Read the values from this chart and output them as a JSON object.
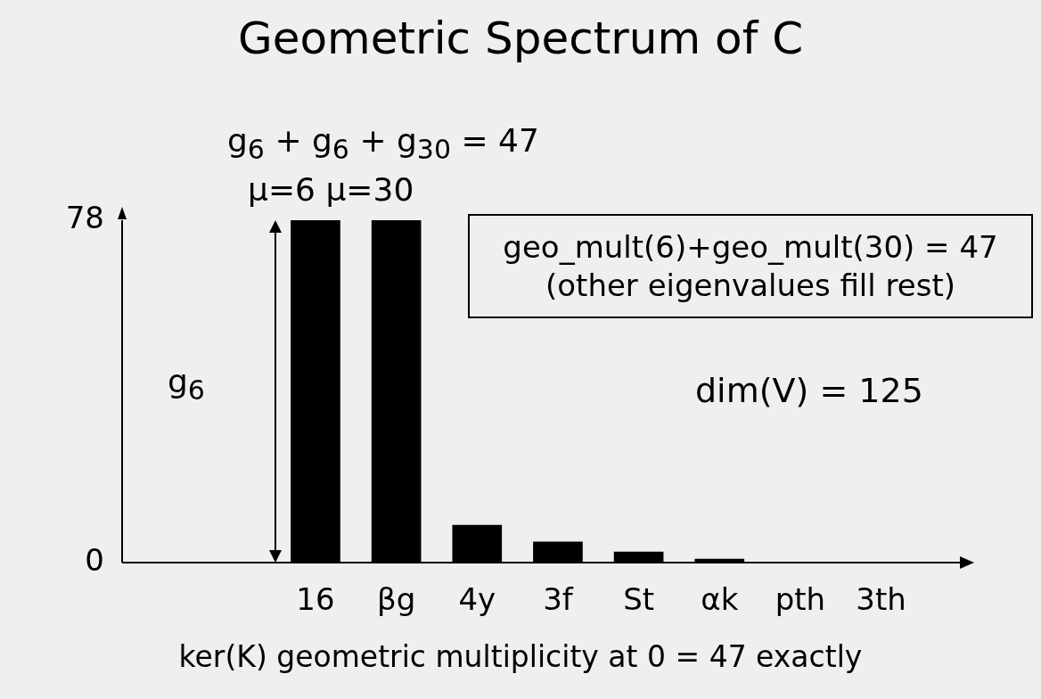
{
  "chart_data": {
    "type": "bar",
    "title": "Geometric Spectrum of C",
    "xlabel": "ker(K) geometric multiplicity at 0 = 47 exactly",
    "categories": [
      "16",
      "βg",
      "4y",
      "3f",
      "St",
      "αk",
      "pth",
      "3th"
    ],
    "values": [
      78,
      78,
      8.5,
      4.7,
      2.4,
      0.8,
      0,
      0
    ],
    "color": "#000000",
    "ylim": [
      0,
      78
    ],
    "yticks": [
      0,
      78
    ],
    "grid": false,
    "legend": false,
    "annotations": [
      "g$_{6}$ + g$_{6}$ + g$_{30}$ = 47",
      "μ=6 μ=30",
      "geo_mult(6)+geo_mult(30) = 47\n(other eigenvalues fill rest)",
      "dim(V) = 125",
      "g$_{6}$"
    ]
  }
}
